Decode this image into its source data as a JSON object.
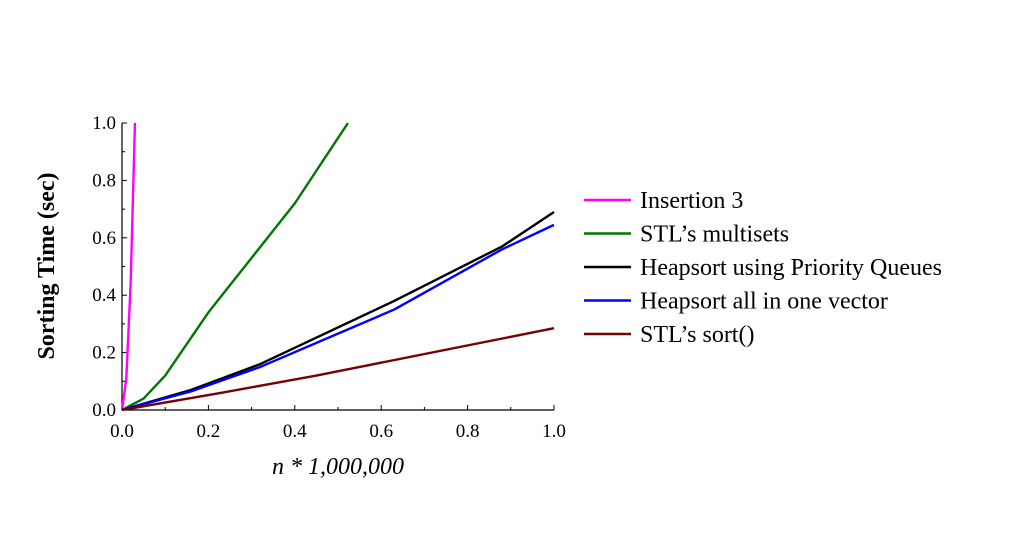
{
  "chart_data": {
    "type": "line",
    "xlabel": "n * 1,000,000",
    "ylabel": "Sorting Time (sec)",
    "xlim": [
      0,
      1.0
    ],
    "ylim": [
      0,
      1.0
    ],
    "xticks": [
      "0.0",
      "0.2",
      "0.4",
      "0.6",
      "0.8",
      "1.0"
    ],
    "yticks": [
      "0.0",
      "0.2",
      "0.4",
      "0.6",
      "0.8",
      "1.0"
    ],
    "grid": false,
    "legend_position": "right",
    "series": [
      {
        "name": "Insertion 3",
        "color": "#ff00ff",
        "x": [
          0,
          0.01,
          0.02,
          0.03
        ],
        "y": [
          0,
          0.11,
          0.44,
          1.0
        ]
      },
      {
        "name": "STL’s multisets",
        "color": "#007700",
        "x": [
          0,
          0.05,
          0.1,
          0.2,
          0.3,
          0.4,
          0.523
        ],
        "y": [
          0,
          0.04,
          0.12,
          0.34,
          0.53,
          0.72,
          1.0
        ]
      },
      {
        "name": "Heapsort using Priority Queues",
        "color": "#000000",
        "x": [
          0,
          0.16,
          0.32,
          0.63,
          0.88,
          1.0
        ],
        "y": [
          0,
          0.07,
          0.16,
          0.38,
          0.57,
          0.69
        ]
      },
      {
        "name": "Heapsort all in one vector",
        "color": "#0000ff",
        "x": [
          0,
          0.16,
          0.32,
          0.63,
          0.88,
          1.0
        ],
        "y": [
          0,
          0.065,
          0.15,
          0.35,
          0.56,
          0.645
        ]
      },
      {
        "name": "STL’s sort()",
        "color": "#770000",
        "x": [
          0,
          0.23,
          0.45,
          1.0
        ],
        "y": [
          0,
          0.06,
          0.12,
          0.285
        ]
      }
    ]
  }
}
